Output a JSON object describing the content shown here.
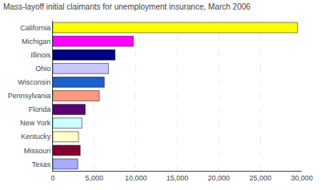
{
  "chart_data": {
    "type": "bar",
    "orientation": "horizontal",
    "title": "Mass-layoff initial claimants for unemployment insurance, March 2006",
    "categories": [
      "California",
      "Michigan",
      "Illinois",
      "Ohio",
      "Wisconsin",
      "Pennsylvania",
      "Florida",
      "New York",
      "Kentucky",
      "Missouri",
      "Texas"
    ],
    "values": [
      29500,
      9700,
      7500,
      6700,
      6200,
      5600,
      3900,
      3500,
      3100,
      3300,
      3000
    ],
    "colors": [
      "#ffff00",
      "#ff00ff",
      "#000080",
      "#c8c8ff",
      "#1e5fcc",
      "#ff9980",
      "#5c0070",
      "#ccffff",
      "#ffffcc",
      "#800030",
      "#aaaaff"
    ],
    "xlim": [
      0,
      30000
    ],
    "xticks": [
      0,
      {
        "value": 5000,
        "label": "5,000"
      },
      {
        "value": 10000,
        "label": "10,000"
      },
      {
        "value": 15000,
        "label": "15,000"
      },
      {
        "value": 20000,
        "label": "20,000"
      },
      {
        "value": 25000,
        "label": "25,000"
      },
      {
        "value": 30000,
        "label": "30,000"
      }
    ],
    "grid": true
  }
}
